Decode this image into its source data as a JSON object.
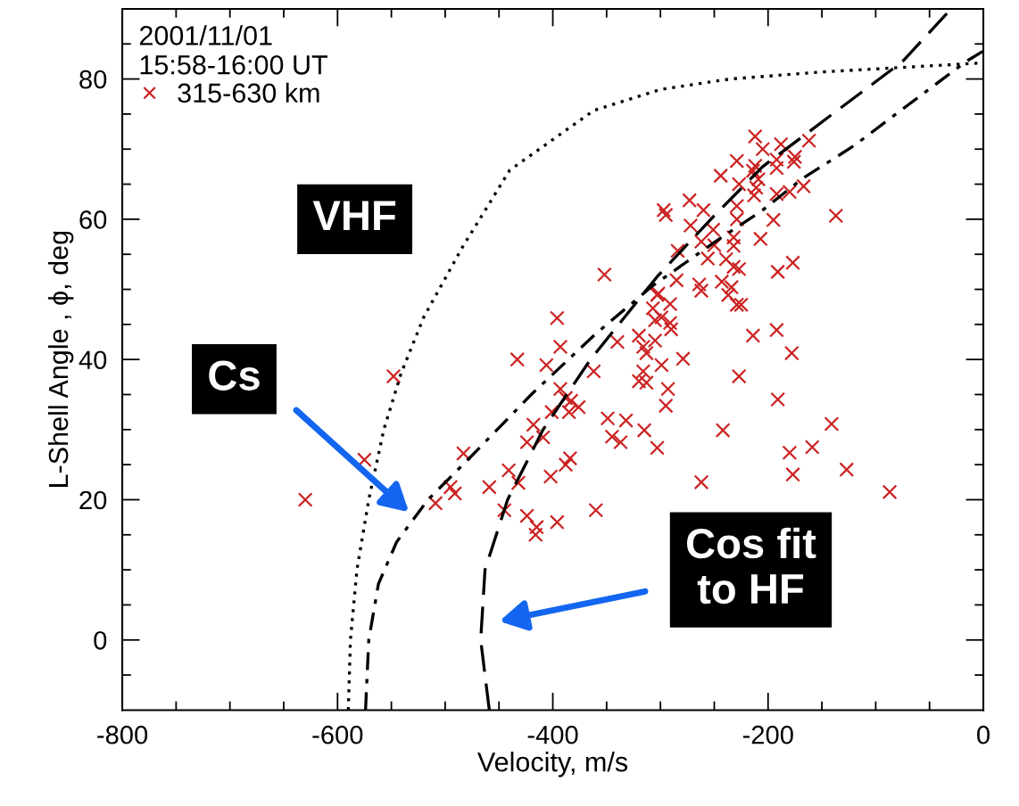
{
  "chart_data": {
    "type": "scatter",
    "xlabel": "Velocity, m/s",
    "ylabel": "L-Shell Angle , ϕ, deg",
    "legend_title": "2001/11/01\n15:58-16:00 UT",
    "legend": "top left",
    "grid": false,
    "xlim": [
      -800,
      0
    ],
    "ylim": [
      -10,
      90
    ],
    "xticks": [
      -800,
      {
        "value": -750,
        "label": null
      },
      {
        "value": -700,
        "label": null
      },
      {
        "value": -650,
        "label": null
      },
      -600,
      {
        "value": -550,
        "label": null
      },
      {
        "value": -500,
        "label": null
      },
      {
        "value": -450,
        "label": null
      },
      -400,
      {
        "value": -350,
        "label": null
      },
      {
        "value": -300,
        "label": null
      },
      {
        "value": -250,
        "label": null
      },
      -200,
      {
        "value": -150,
        "label": null
      },
      {
        "value": -100,
        "label": null
      },
      {
        "value": -50,
        "label": null
      },
      0
    ],
    "yticks": [
      {
        "value": -5,
        "label": null
      },
      0,
      {
        "value": 5,
        "label": null
      },
      {
        "value": 10,
        "label": null
      },
      {
        "value": 15,
        "label": null
      },
      20,
      {
        "value": 25,
        "label": null
      },
      {
        "value": 30,
        "label": null
      },
      {
        "value": 35,
        "label": null
      },
      40,
      {
        "value": 45,
        "label": null
      },
      {
        "value": 50,
        "label": null
      },
      {
        "value": 55,
        "label": null
      },
      60,
      {
        "value": 65,
        "label": null
      },
      {
        "value": 70,
        "label": null
      },
      {
        "value": 75,
        "label": null
      },
      80,
      {
        "value": 85,
        "label": null
      }
    ],
    "annotations": [
      "VHF",
      "Cs",
      "Cos fit\nto HF"
    ],
    "series": [
      {
        "name": "315-630 km",
        "marker": "cross",
        "color": "#cc2222",
        "x": [
          -630,
          -575,
          -548,
          -509,
          -352,
          -396,
          -393,
          -433,
          -406,
          -362,
          -340,
          -320,
          -316,
          -313,
          -316,
          -320,
          -313,
          -305,
          -307,
          -303,
          -305,
          -393,
          -388,
          -383,
          -376,
          -385,
          -401,
          -418,
          -424,
          -409,
          -349,
          -332,
          -345,
          -337,
          -315,
          -303,
          -384,
          -388,
          -402,
          -441,
          -432,
          -459,
          -495,
          -491,
          -483,
          -445,
          -424,
          -415,
          -416,
          -396,
          -360,
          -212,
          -188,
          -205,
          -162,
          -175,
          -176,
          -192,
          -229,
          -212,
          -214,
          -244,
          -192,
          -209,
          -227,
          -211,
          -213,
          -192,
          -180,
          -167,
          -137,
          -195,
          -273,
          -297,
          -295,
          -260,
          -229,
          -272,
          -229,
          -251,
          -262,
          -232,
          -207,
          -250,
          -284,
          -232,
          -256,
          -239,
          -232,
          -227,
          -191,
          -177,
          -285,
          -264,
          -262,
          -243,
          -234,
          -237,
          -229,
          -225,
          -302,
          -291,
          -299,
          -291,
          -290,
          -279,
          -299,
          -214,
          -192,
          -178,
          -227,
          -293,
          -295,
          -191,
          -242,
          -141,
          -159,
          -180,
          -177,
          -127,
          -262,
          -87
        ],
        "values": [
          20,
          25.7,
          37.6,
          19.5,
          52.1,
          45.9,
          41.8,
          40,
          39.2,
          38.3,
          42.5,
          43.4,
          41.8,
          40.9,
          38.3,
          36.9,
          36.7,
          42.7,
          47.3,
          49.2,
          45.6,
          35.8,
          34.5,
          34.1,
          33.2,
          32.5,
          32.5,
          30.7,
          28.2,
          28.9,
          31.6,
          31.3,
          29,
          28.2,
          29.9,
          27.4,
          25.9,
          25,
          23.3,
          24.2,
          22.4,
          21.8,
          21.8,
          20.9,
          26.6,
          18.5,
          17.7,
          16.1,
          15,
          16.8,
          18.5,
          71.8,
          70.7,
          70,
          71.2,
          68.9,
          68.2,
          68.5,
          68.3,
          67.6,
          66.9,
          66.2,
          67.3,
          65.7,
          65,
          64.5,
          63.4,
          63.6,
          63.9,
          64.7,
          60.5,
          59.9,
          62.7,
          61.3,
          60.6,
          61.3,
          61.9,
          59.1,
          60,
          58.5,
          56.8,
          57.4,
          57.2,
          56.3,
          55.5,
          56.2,
          54.4,
          54.3,
          53.2,
          52.9,
          52.5,
          53.8,
          51.3,
          50.7,
          49.8,
          51.1,
          50.3,
          49.2,
          47.8,
          47.8,
          49.4,
          47.9,
          46,
          45.2,
          44.3,
          40.1,
          39.2,
          43.4,
          44.2,
          40.9,
          37.6,
          35.8,
          33.4,
          34.3,
          29.9,
          30.8,
          27.5,
          26.7,
          23.6,
          24.3,
          22.5,
          21.1
        ]
      },
      {
        "type": "line",
        "line_style": "dotted",
        "color": "#000000",
        "marker": "none",
        "x": [
          -590,
          -588,
          -582,
          -571,
          -557,
          -541,
          -520,
          -484,
          -440,
          -362,
          -300,
          -235,
          -150,
          0
        ],
        "values": [
          -10,
          0,
          10,
          20,
          30,
          38,
          46,
          56,
          67,
          75.5,
          78.5,
          80,
          81,
          82.3
        ]
      },
      {
        "type": "line",
        "line_style": "dashdot",
        "color": "#000000",
        "marker": "none",
        "x": [
          -574,
          -571,
          -562,
          -545,
          -516,
          -477,
          -420,
          -362,
          -309,
          -250,
          -205,
          -169,
          -120,
          -82,
          -16,
          0
        ],
        "values": [
          -10,
          0,
          8,
          14,
          20,
          26,
          35,
          43.4,
          50.3,
          56.7,
          61.3,
          65.7,
          70.5,
          74.9,
          82.5,
          84
        ]
      },
      {
        "type": "line",
        "line_style": "dashed",
        "color": "#000000",
        "marker": "none",
        "x": [
          -459,
          -467,
          -463,
          -442,
          -409,
          -365,
          -302,
          -250,
          -205,
          -141,
          -75,
          -30
        ],
        "values": [
          -10,
          0,
          10,
          20,
          30,
          40,
          52,
          60.5,
          67.5,
          74.9,
          82.5,
          90
        ]
      }
    ]
  }
}
